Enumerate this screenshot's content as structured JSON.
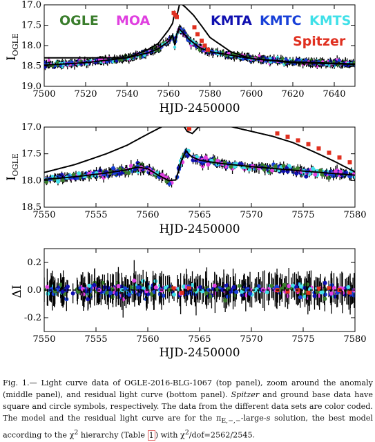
{
  "caption": {
    "part1": "Fig. 1.— Light curve data of OGLE-2016-BLG-1067 (top panel), zoom around the anomaly (middle panel), and residual light curve (bottom panel). ",
    "spitzer_italic": "Spitzer",
    "part2": " and ground base data have square and circle symbols, respectively. The data from the different data sets are color coded. The model and the residual light curve are for the π",
    "subscript": "E,−,−",
    "part3": "-large-",
    "s_italic": "s",
    "part4": " solution, the best model according to the χ",
    "sup2": "2",
    "part5": " hierarchy (Table ",
    "table_ref": "1",
    "part6": ") with χ",
    "sup2b": "2",
    "part7": "/dof=2562/2545."
  },
  "colors": {
    "OGLE": "#3a7d2c",
    "MOA": "#e040e0",
    "KMTA": "#1010b0",
    "KMTC": "#1840d8",
    "KMTS": "#40e0e8",
    "Spitzer": "#e03020",
    "model": "#000000"
  },
  "chart_data": [
    {
      "type": "scatter",
      "panel": "top",
      "xlabel": "HJD-2450000",
      "ylabel_main": "I",
      "ylabel_sub": "OGLE",
      "xlim": [
        7500,
        7650
      ],
      "ylim": [
        19.0,
        17.0
      ],
      "xticks": [
        "7500",
        "7520",
        "7540",
        "7560",
        "7580",
        "7600",
        "7620",
        "7640"
      ],
      "xtick_values": [
        7500,
        7520,
        7540,
        7560,
        7580,
        7600,
        7620,
        7640
      ],
      "yticks": [
        "17.0",
        "17.5",
        "18.0",
        "18.5",
        "19.0"
      ],
      "ytick_values": [
        17.0,
        17.5,
        18.0,
        18.5,
        19.0
      ],
      "legend": [
        "OGLE",
        "MOA",
        "KMTA",
        "KMTC",
        "KMTS",
        "Spitzer"
      ],
      "model_ground": [
        [
          7500,
          18.48
        ],
        [
          7520,
          18.42
        ],
        [
          7540,
          18.3
        ],
        [
          7550,
          18.18
        ],
        [
          7555,
          18.08
        ],
        [
          7560,
          17.9
        ],
        [
          7562,
          17.75
        ],
        [
          7563,
          17.98
        ],
        [
          7564,
          17.72
        ],
        [
          7565,
          17.58
        ],
        [
          7570,
          17.85
        ],
        [
          7575,
          18.05
        ],
        [
          7580,
          18.15
        ],
        [
          7600,
          18.32
        ],
        [
          7620,
          18.4
        ],
        [
          7650,
          18.45
        ]
      ],
      "model_spitzer": [
        [
          7540,
          18.3
        ],
        [
          7550,
          18.1
        ],
        [
          7555,
          17.95
        ],
        [
          7560,
          17.62
        ],
        [
          7562,
          17.45
        ],
        [
          7563,
          17.18
        ],
        [
          7564,
          17.28
        ],
        [
          7565.5,
          16.95
        ],
        [
          7568,
          17.05
        ],
        [
          7572,
          17.25
        ],
        [
          7576,
          17.52
        ],
        [
          7580,
          17.8
        ],
        [
          7590,
          18.15
        ],
        [
          7600,
          18.32
        ],
        [
          7620,
          18.42
        ],
        [
          7650,
          18.46
        ]
      ],
      "spitzer_points": [
        [
          7562.5,
          17.2
        ],
        [
          7563.2,
          17.25
        ],
        [
          7564,
          17.3
        ],
        [
          7572.5,
          17.55
        ],
        [
          7574,
          17.72
        ],
        [
          7576,
          17.88
        ],
        [
          7577.5,
          18.0
        ],
        [
          7579,
          18.1
        ]
      ]
    },
    {
      "type": "scatter",
      "panel": "middle",
      "xlabel": "HJD-2450000",
      "ylabel_main": "I",
      "ylabel_sub": "OGLE",
      "xlim": [
        7550,
        7580
      ],
      "ylim": [
        18.5,
        17.0
      ],
      "xticks": [
        "7550",
        "7555",
        "7560",
        "7565",
        "7570",
        "7575",
        "7580"
      ],
      "xtick_values": [
        7550,
        7555,
        7560,
        7565,
        7570,
        7575,
        7580
      ],
      "yticks": [
        "17.0",
        "17.5",
        "18.0",
        "18.5"
      ],
      "ytick_values": [
        17.0,
        17.5,
        18.0,
        18.5
      ],
      "model_ground": [
        [
          7550,
          17.98
        ],
        [
          7553,
          17.93
        ],
        [
          7556,
          17.86
        ],
        [
          7558,
          17.8
        ],
        [
          7559,
          17.75
        ],
        [
          7560,
          17.78
        ],
        [
          7561,
          17.9
        ],
        [
          7562,
          18.0
        ],
        [
          7562.7,
          17.99
        ],
        [
          7563.3,
          17.6
        ],
        [
          7563.7,
          17.45
        ],
        [
          7564.2,
          17.55
        ],
        [
          7565,
          17.62
        ],
        [
          7567,
          17.68
        ],
        [
          7570,
          17.74
        ],
        [
          7573,
          17.79
        ],
        [
          7576,
          17.84
        ],
        [
          7580,
          17.9
        ]
      ],
      "model_spitzer": [
        [
          7550,
          17.85
        ],
        [
          7553,
          17.7
        ],
        [
          7556,
          17.5
        ],
        [
          7558,
          17.34
        ],
        [
          7560,
          17.13
        ],
        [
          7561.5,
          16.98
        ],
        [
          7562.5,
          16.85
        ],
        [
          7563.2,
          16.9
        ],
        [
          7563.8,
          17.08
        ],
        [
          7564.3,
          17.12
        ],
        [
          7565,
          16.98
        ],
        [
          7565.8,
          16.93
        ],
        [
          7568,
          16.99
        ],
        [
          7570,
          17.08
        ],
        [
          7572,
          17.17
        ],
        [
          7574,
          17.29
        ],
        [
          7576,
          17.46
        ],
        [
          7578,
          17.64
        ],
        [
          7580,
          17.84
        ]
      ],
      "spitzer_points": [
        [
          7562.5,
          16.85
        ],
        [
          7563.3,
          16.92
        ],
        [
          7564,
          17.03
        ],
        [
          7572.5,
          17.12
        ],
        [
          7573.5,
          17.18
        ],
        [
          7574.5,
          17.25
        ],
        [
          7575.5,
          17.32
        ],
        [
          7576.5,
          17.4
        ],
        [
          7577.5,
          17.48
        ],
        [
          7578.5,
          17.57
        ],
        [
          7579.5,
          17.66
        ]
      ]
    },
    {
      "type": "scatter",
      "panel": "bottom",
      "xlabel": "HJD-2450000",
      "ylabel_main": "ΔI",
      "xlim": [
        7550,
        7580
      ],
      "ylim": [
        -0.3,
        0.3
      ],
      "xticks": [
        "7550",
        "7555",
        "7560",
        "7565",
        "7570",
        "7575",
        "7580"
      ],
      "xtick_values": [
        7550,
        7555,
        7560,
        7565,
        7570,
        7575,
        7580
      ],
      "yticks": [
        "0.2",
        "0.0",
        "-0.2"
      ],
      "ytick_values": [
        0.2,
        0.0,
        -0.2
      ]
    }
  ]
}
